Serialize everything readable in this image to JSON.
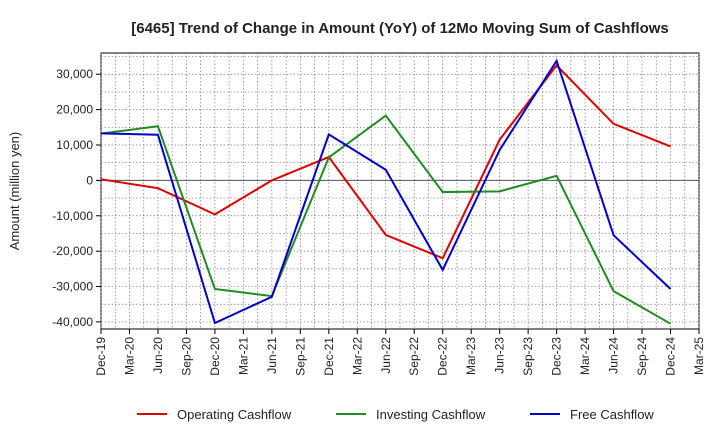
{
  "chart_data": {
    "type": "line",
    "title": "[6465]  Trend of Change in Amount (YoY) of 12Mo Moving Sum of Cashflows",
    "xlabel": "",
    "ylabel": "Amount (million yen)",
    "ylim": [
      -42000,
      36000
    ],
    "yticks": [
      30000,
      20000,
      10000,
      0,
      -10000,
      -20000,
      -30000,
      -40000
    ],
    "ytick_labels": [
      "30,000",
      "20,000",
      "10,000",
      "0",
      "-10,000",
      "-20,000",
      "-30,000",
      "-40,000"
    ],
    "x_ticks": [
      "Dec-19",
      "Mar-20",
      "Jun-20",
      "Sep-20",
      "Dec-20",
      "Mar-21",
      "Jun-21",
      "Sep-21",
      "Dec-21",
      "Mar-22",
      "Jun-22",
      "Sep-22",
      "Dec-22",
      "Mar-23",
      "Jun-23",
      "Sep-23",
      "Dec-23",
      "Mar-24",
      "Jun-24",
      "Sep-24",
      "Dec-24",
      "Mar-25"
    ],
    "grid": true,
    "legend_position": "bottom",
    "series": [
      {
        "name": "Operating Cashflow",
        "color": "#dd0000",
        "x_index": [
          0,
          2,
          4,
          6,
          8,
          10,
          12,
          14,
          16,
          18,
          20
        ],
        "values": [
          300,
          -2200,
          -9600,
          0,
          6600,
          -15400,
          -22000,
          11500,
          32500,
          16000,
          9600
        ]
      },
      {
        "name": "Investing Cashflow",
        "color": "#228b22",
        "x_index": [
          0,
          2,
          4,
          6,
          8,
          10,
          12,
          14,
          16,
          18,
          20
        ],
        "values": [
          13200,
          15300,
          -30700,
          -32700,
          6500,
          18300,
          -3300,
          -3100,
          1300,
          -31300,
          -40500
        ]
      },
      {
        "name": "Free Cashflow",
        "color": "#0000cc",
        "x_index": [
          0,
          2,
          4,
          6,
          8,
          10,
          12,
          14,
          16,
          18,
          20
        ],
        "values": [
          13300,
          12900,
          -40300,
          -32900,
          13000,
          3000,
          -25300,
          8600,
          33800,
          -15500,
          -30700
        ]
      }
    ]
  }
}
